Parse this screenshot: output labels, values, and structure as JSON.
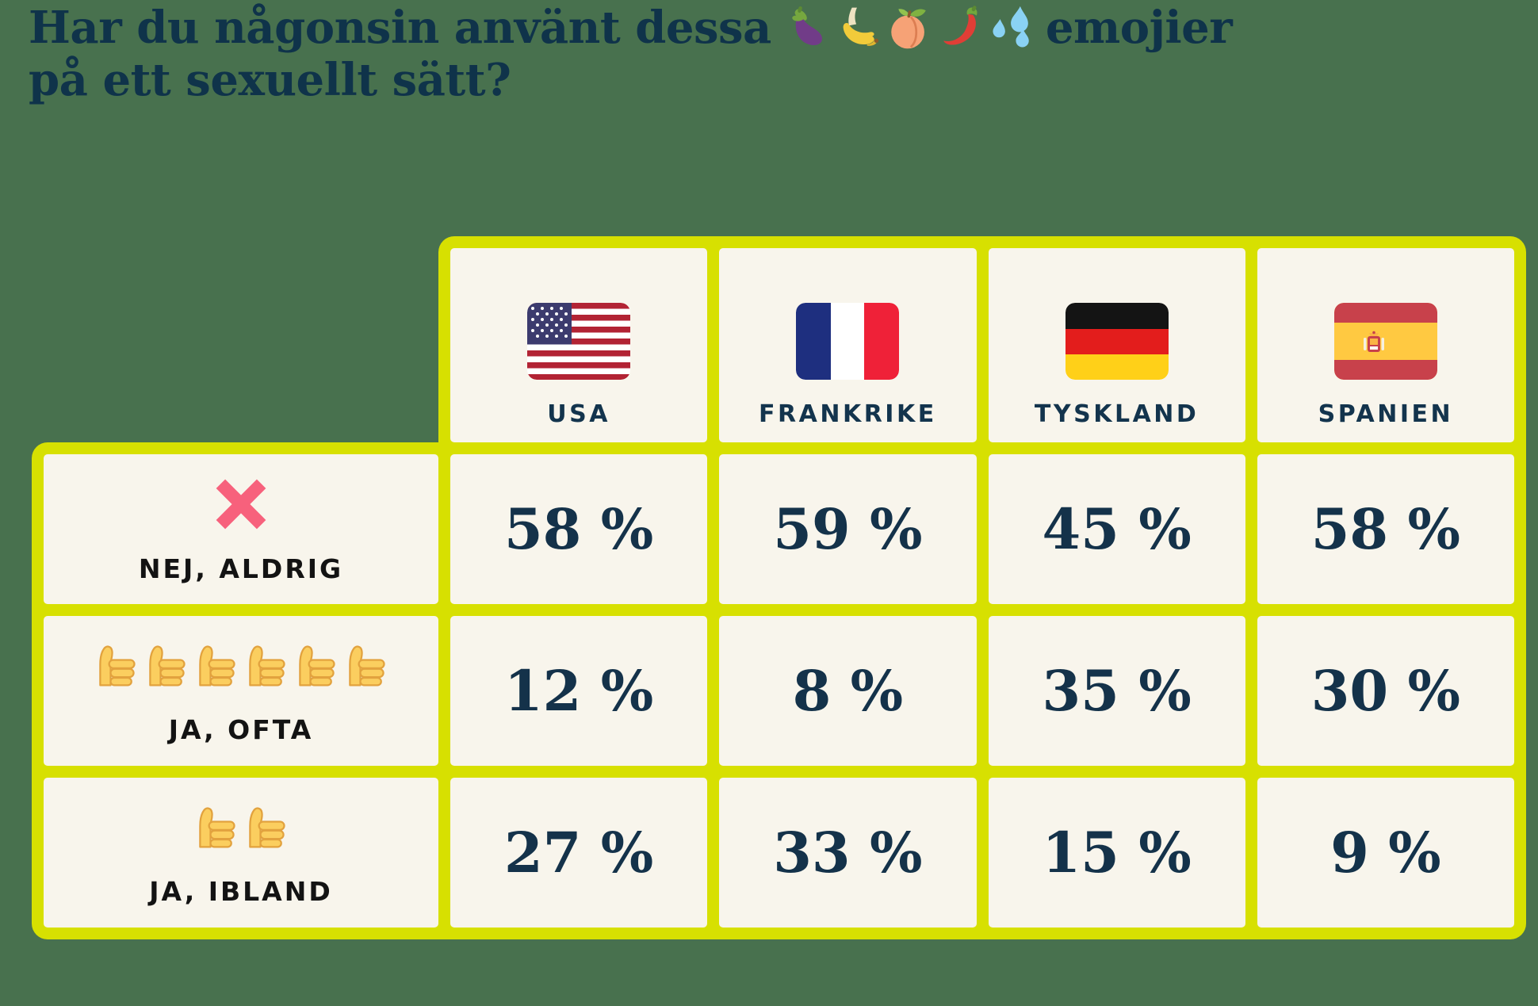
{
  "background_color": "#48714E",
  "accent_lime": "#D7E001",
  "cell_cream": "#F8F5EC",
  "navy": "#0F334A",
  "row_label_color": "#131313",
  "cross_color": "#F7617C",
  "thumb_color": "#FBCE5F",
  "title": {
    "line1_before": "Har du någonsin använt dessa",
    "line1_after": "emojier",
    "line2": "på ett sexuellt sätt?",
    "emojis": [
      "eggplant-emoji",
      "banana-emoji",
      "peach-emoji",
      "hot-pepper-emoji",
      "sweat-droplets-emoji"
    ]
  },
  "table": {
    "columns": [
      {
        "label": "USA",
        "flag": "usa-flag"
      },
      {
        "label": "FRANKRIKE",
        "flag": "france-flag"
      },
      {
        "label": "TYSKLAND",
        "flag": "germany-flag"
      },
      {
        "label": "SPANIEN",
        "flag": "spain-flag"
      }
    ],
    "rows": [
      {
        "label": "NEJ, ALDRIG",
        "icon": "cross-mark-icon",
        "icon_count": 1,
        "values": [
          "58 %",
          "59 %",
          "45 %",
          "58 %"
        ]
      },
      {
        "label": "JA, OFTA",
        "icon": "thumbs-up-icon",
        "icon_count": 6,
        "values": [
          "12 %",
          "8 %",
          "35 %",
          "30 %"
        ]
      },
      {
        "label": "JA, IBLAND",
        "icon": "thumbs-up-icon",
        "icon_count": 2,
        "values": [
          "27 %",
          "33 %",
          "15 %",
          "9 %"
        ]
      }
    ]
  },
  "chart_data": {
    "type": "table",
    "title": "Har du någonsin använt dessa 🍆🍌🍑🌶️💦 emojier på ett sexuellt sätt?",
    "categories": [
      "USA",
      "FRANKRIKE",
      "TYSKLAND",
      "SPANIEN"
    ],
    "series": [
      {
        "name": "NEJ, ALDRIG",
        "values": [
          58,
          59,
          45,
          58
        ]
      },
      {
        "name": "JA, OFTA",
        "values": [
          12,
          8,
          35,
          30
        ]
      },
      {
        "name": "JA, IBLAND",
        "values": [
          27,
          33,
          15,
          9
        ]
      }
    ],
    "unit": "%"
  }
}
